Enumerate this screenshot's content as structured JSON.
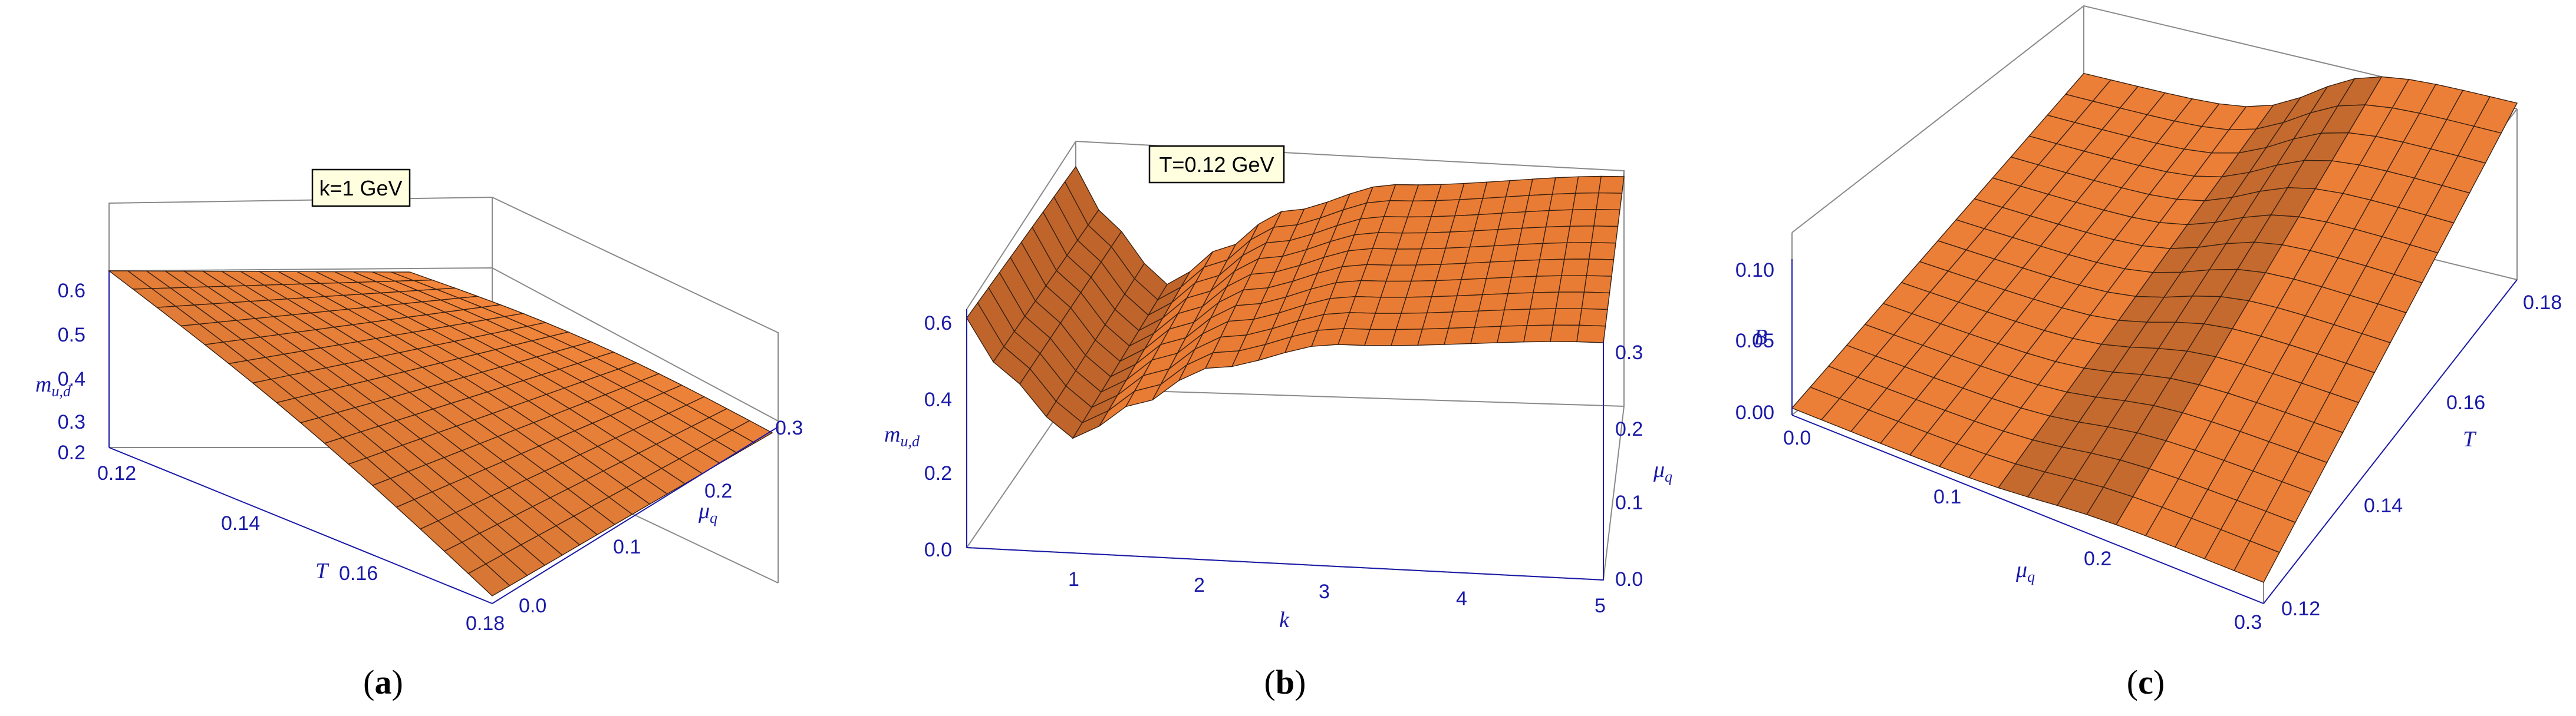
{
  "chart_data": [
    {
      "type": "surface",
      "caption_letter": "a",
      "annotation": "k=1 GeV",
      "x": {
        "label": "T",
        "ticks": [
          "0.12",
          "0.14",
          "0.16",
          "0.18"
        ],
        "range": [
          0.12,
          0.18
        ]
      },
      "y": {
        "label": "μ_q",
        "ticks": [
          "0.0",
          "0.1",
          "0.2",
          "0.3"
        ],
        "range": [
          0.0,
          0.3
        ]
      },
      "z": {
        "label": "m_u,d",
        "ticks": [
          "0.2",
          "0.3",
          "0.4",
          "0.5",
          "0.6"
        ],
        "range": [
          0.2,
          0.65
        ]
      },
      "corner_values": {
        "T0.12_mu0.0": 0.62,
        "T0.12_mu0.3": 0.6,
        "T0.18_mu0.0": 0.28,
        "T0.18_mu0.3": 0.26
      }
    },
    {
      "type": "surface",
      "caption_letter": "b",
      "annotation": "T=0.12 GeV",
      "x": {
        "label": "k",
        "ticks": [
          "1",
          "2",
          "3",
          "4",
          "5"
        ],
        "range": [
          0.2,
          5.0
        ]
      },
      "y": {
        "label": "μ_q",
        "ticks": [
          "0.0",
          "0.1",
          "0.2",
          "0.3"
        ],
        "range": [
          0.0,
          0.3
        ]
      },
      "z": {
        "label": "m_u,d",
        "ticks": [
          "0.0",
          "0.2",
          "0.4",
          "0.6"
        ],
        "range": [
          0.0,
          0.65
        ]
      },
      "profile_along_k": [
        [
          0.2,
          0.6
        ],
        [
          0.5,
          0.45
        ],
        [
          1.0,
          0.3
        ],
        [
          1.5,
          0.4
        ],
        [
          2.0,
          0.5
        ],
        [
          3.0,
          0.58
        ],
        [
          5.0,
          0.62
        ]
      ]
    },
    {
      "type": "surface",
      "caption_letter": "c",
      "annotation": "",
      "x": {
        "label": "μ_q",
        "ticks": [
          "0.0",
          "0.1",
          "0.2",
          "0.3"
        ],
        "range": [
          0.0,
          0.3
        ]
      },
      "y": {
        "label": "T",
        "ticks": [
          "0.12",
          "0.14",
          "0.16",
          "0.18"
        ],
        "range": [
          0.12,
          0.18
        ]
      },
      "z": {
        "label": "B",
        "ticks": [
          "0.00",
          "0.05",
          "0.10"
        ],
        "range": [
          0.0,
          0.12
        ]
      }
    }
  ],
  "captions": {
    "a": {
      "open": "(",
      "letter": "a",
      "close": ")"
    },
    "b": {
      "open": "(",
      "letter": "b",
      "close": ")"
    },
    "c": {
      "open": "(",
      "letter": "c",
      "close": ")"
    }
  }
}
